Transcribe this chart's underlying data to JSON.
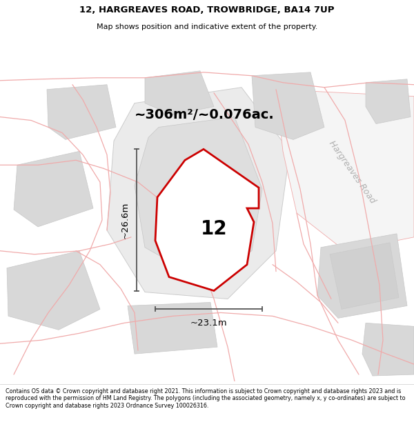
{
  "title_line1": "12, HARGREAVES ROAD, TROWBRIDGE, BA14 7UP",
  "title_line2": "Map shows position and indicative extent of the property.",
  "footer_text": "Contains OS data © Crown copyright and database right 2021. This information is subject to Crown copyright and database rights 2023 and is reproduced with the permission of HM Land Registry. The polygons (including the associated geometry, namely x, y co-ordinates) are subject to Crown copyright and database rights 2023 Ordnance Survey 100026316.",
  "area_label": "~306m²/~0.076ac.",
  "property_number": "12",
  "dim_height": "~26.6m",
  "dim_width": "~23.1m",
  "road_label": "Hargreaves Road",
  "red_stroke": "#cc0000",
  "pink_stroke": "#f0aaaa",
  "gray_fill": "#e0e0e0",
  "gray_fill2": "#d8d8d8",
  "gray_edge": "#c8c8c8",
  "dim_color": "#555555",
  "road_label_color": "#b0b0b0",
  "white": "#ffffff"
}
